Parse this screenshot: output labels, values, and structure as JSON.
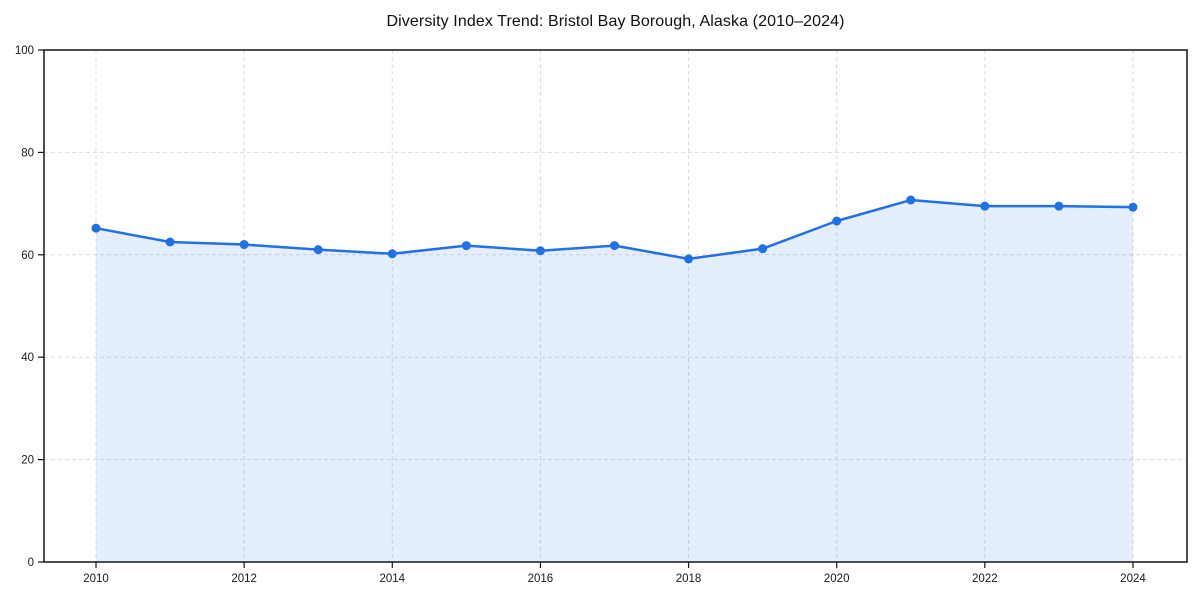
{
  "chart_data": {
    "type": "area",
    "title": "Diversity Index Trend: Bristol Bay Borough, Alaska (2010–2024)",
    "x": [
      2010,
      2011,
      2012,
      2013,
      2014,
      2015,
      2016,
      2017,
      2018,
      2019,
      2020,
      2021,
      2022,
      2023,
      2024
    ],
    "values": [
      65.2,
      62.5,
      62.0,
      61.0,
      60.2,
      61.8,
      60.8,
      61.8,
      59.2,
      61.2,
      66.6,
      70.7,
      69.5,
      69.5,
      69.3
    ],
    "xlabel": "",
    "ylabel": "",
    "ylim": [
      0,
      100
    ],
    "yticks": [
      0,
      20,
      40,
      60,
      80,
      100
    ],
    "xticks": [
      2010,
      2012,
      2014,
      2016,
      2018,
      2020,
      2022,
      2024
    ],
    "grid": true,
    "grid_style": "dashed",
    "legend_position": "none",
    "marker": "circle",
    "colors": {
      "line": "#2070e8",
      "marker": "#2070e8",
      "fill": "rgba(32,112,232,0.12)",
      "grid": "#dcdcdc",
      "axis": "#141414",
      "tick_label": "#1a1a1a",
      "background": "#ffffff"
    }
  }
}
